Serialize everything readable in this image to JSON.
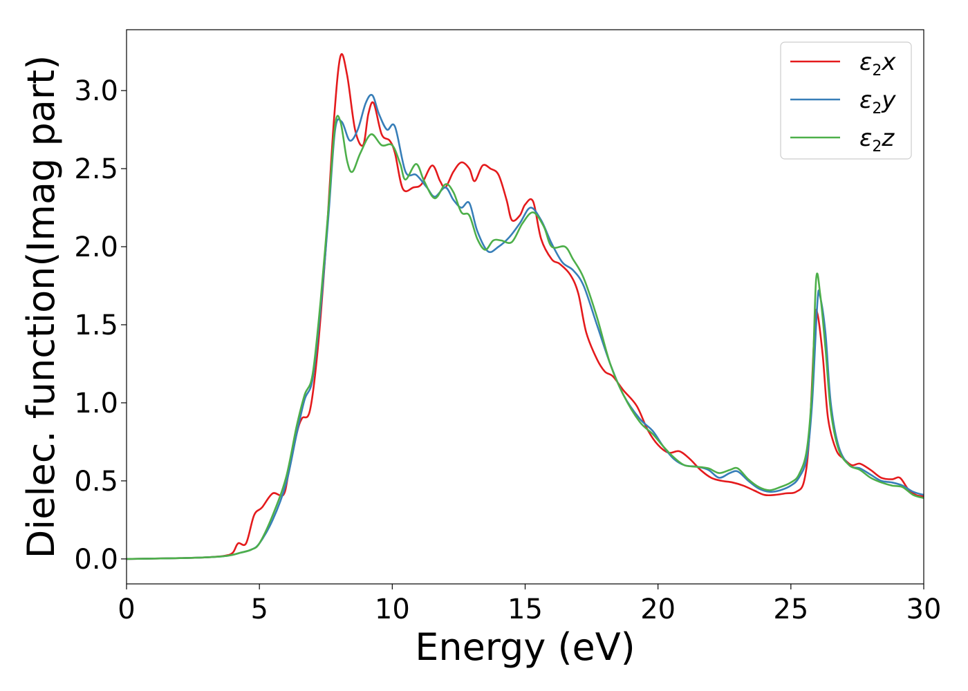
{
  "chart_data": {
    "type": "line",
    "xlabel": "Energy (eV)",
    "ylabel": "Dielec. function(Imag part)",
    "xlim": [
      0,
      30
    ],
    "ylim": [
      -0.16,
      3.39
    ],
    "xticks": [
      0,
      5,
      10,
      15,
      20,
      25,
      30
    ],
    "xtick_labels": [
      "0",
      "5",
      "10",
      "15",
      "20",
      "25",
      "30"
    ],
    "yticks": [
      0.0,
      0.5,
      1.0,
      1.5,
      2.0,
      2.5,
      3.0
    ],
    "ytick_labels": [
      "0.0",
      "0.5",
      "1.0",
      "1.5",
      "2.0",
      "2.5",
      "3.0"
    ],
    "grid": false,
    "legend_position": "top-right",
    "series": [
      {
        "name": "ε2x",
        "legend": {
          "main": "ε",
          "sub": "2",
          "tail": "x"
        },
        "color": "#e41a1c",
        "points": [
          [
            0,
            0.0
          ],
          [
            2,
            0.005
          ],
          [
            3,
            0.01
          ],
          [
            3.7,
            0.02
          ],
          [
            4.0,
            0.04
          ],
          [
            4.2,
            0.1
          ],
          [
            4.5,
            0.1
          ],
          [
            4.8,
            0.28
          ],
          [
            5.1,
            0.33
          ],
          [
            5.5,
            0.42
          ],
          [
            5.9,
            0.41
          ],
          [
            6.1,
            0.55
          ],
          [
            6.4,
            0.8
          ],
          [
            6.6,
            0.9
          ],
          [
            6.9,
            0.95
          ],
          [
            7.2,
            1.35
          ],
          [
            7.5,
            2.0
          ],
          [
            7.8,
            2.8
          ],
          [
            8.05,
            3.22
          ],
          [
            8.3,
            3.1
          ],
          [
            8.6,
            2.75
          ],
          [
            8.9,
            2.65
          ],
          [
            9.1,
            2.85
          ],
          [
            9.3,
            2.92
          ],
          [
            9.6,
            2.72
          ],
          [
            9.9,
            2.68
          ],
          [
            10.1,
            2.6
          ],
          [
            10.4,
            2.37
          ],
          [
            10.8,
            2.38
          ],
          [
            11.1,
            2.4
          ],
          [
            11.5,
            2.52
          ],
          [
            11.8,
            2.42
          ],
          [
            12.0,
            2.38
          ],
          [
            12.3,
            2.48
          ],
          [
            12.6,
            2.54
          ],
          [
            12.9,
            2.5
          ],
          [
            13.1,
            2.42
          ],
          [
            13.4,
            2.52
          ],
          [
            13.7,
            2.5
          ],
          [
            14.0,
            2.46
          ],
          [
            14.3,
            2.3
          ],
          [
            14.5,
            2.17
          ],
          [
            14.8,
            2.2
          ],
          [
            15.0,
            2.27
          ],
          [
            15.3,
            2.29
          ],
          [
            15.6,
            2.05
          ],
          [
            16.0,
            1.92
          ],
          [
            16.3,
            1.89
          ],
          [
            16.7,
            1.82
          ],
          [
            17.0,
            1.7
          ],
          [
            17.3,
            1.45
          ],
          [
            17.7,
            1.28
          ],
          [
            18.0,
            1.2
          ],
          [
            18.3,
            1.17
          ],
          [
            18.7,
            1.08
          ],
          [
            19.2,
            0.98
          ],
          [
            19.6,
            0.83
          ],
          [
            20.0,
            0.73
          ],
          [
            20.4,
            0.68
          ],
          [
            20.8,
            0.69
          ],
          [
            21.2,
            0.64
          ],
          [
            21.6,
            0.57
          ],
          [
            22.0,
            0.52
          ],
          [
            22.4,
            0.5
          ],
          [
            22.8,
            0.49
          ],
          [
            23.2,
            0.47
          ],
          [
            23.6,
            0.44
          ],
          [
            24.0,
            0.41
          ],
          [
            24.4,
            0.41
          ],
          [
            24.8,
            0.42
          ],
          [
            25.2,
            0.43
          ],
          [
            25.5,
            0.5
          ],
          [
            25.7,
            0.8
          ],
          [
            25.9,
            1.5
          ],
          [
            26.0,
            1.57
          ],
          [
            26.2,
            1.3
          ],
          [
            26.4,
            0.9
          ],
          [
            26.7,
            0.7
          ],
          [
            27.0,
            0.64
          ],
          [
            27.3,
            0.6
          ],
          [
            27.6,
            0.61
          ],
          [
            28.0,
            0.57
          ],
          [
            28.4,
            0.52
          ],
          [
            28.8,
            0.51
          ],
          [
            29.1,
            0.52
          ],
          [
            29.4,
            0.45
          ],
          [
            29.7,
            0.41
          ],
          [
            30.0,
            0.4
          ]
        ]
      },
      {
        "name": "ε2y",
        "legend": {
          "main": "ε",
          "sub": "2",
          "tail": "y"
        },
        "color": "#377eb8",
        "points": [
          [
            0,
            0.0
          ],
          [
            2,
            0.005
          ],
          [
            3,
            0.01
          ],
          [
            3.8,
            0.02
          ],
          [
            4.3,
            0.04
          ],
          [
            4.7,
            0.06
          ],
          [
            5.0,
            0.1
          ],
          [
            5.5,
            0.25
          ],
          [
            6.0,
            0.48
          ],
          [
            6.4,
            0.8
          ],
          [
            6.7,
            1.02
          ],
          [
            7.0,
            1.15
          ],
          [
            7.3,
            1.6
          ],
          [
            7.6,
            2.2
          ],
          [
            7.85,
            2.75
          ],
          [
            8.1,
            2.8
          ],
          [
            8.4,
            2.68
          ],
          [
            8.7,
            2.75
          ],
          [
            9.0,
            2.92
          ],
          [
            9.25,
            2.97
          ],
          [
            9.5,
            2.85
          ],
          [
            9.8,
            2.75
          ],
          [
            10.1,
            2.77
          ],
          [
            10.5,
            2.48
          ],
          [
            10.9,
            2.46
          ],
          [
            11.3,
            2.38
          ],
          [
            11.6,
            2.32
          ],
          [
            12.0,
            2.38
          ],
          [
            12.3,
            2.3
          ],
          [
            12.6,
            2.25
          ],
          [
            12.9,
            2.28
          ],
          [
            13.2,
            2.1
          ],
          [
            13.6,
            1.97
          ],
          [
            14.0,
            2.0
          ],
          [
            14.4,
            2.06
          ],
          [
            14.8,
            2.15
          ],
          [
            15.2,
            2.25
          ],
          [
            15.6,
            2.17
          ],
          [
            16.0,
            2.02
          ],
          [
            16.4,
            1.9
          ],
          [
            16.8,
            1.85
          ],
          [
            17.2,
            1.75
          ],
          [
            17.7,
            1.5
          ],
          [
            18.2,
            1.25
          ],
          [
            18.7,
            1.05
          ],
          [
            19.3,
            0.9
          ],
          [
            19.8,
            0.82
          ],
          [
            20.2,
            0.72
          ],
          [
            20.6,
            0.64
          ],
          [
            21.0,
            0.6
          ],
          [
            21.5,
            0.59
          ],
          [
            21.9,
            0.57
          ],
          [
            22.3,
            0.52
          ],
          [
            22.7,
            0.55
          ],
          [
            23.0,
            0.56
          ],
          [
            23.4,
            0.5
          ],
          [
            23.8,
            0.45
          ],
          [
            24.2,
            0.43
          ],
          [
            24.6,
            0.44
          ],
          [
            25.0,
            0.47
          ],
          [
            25.3,
            0.52
          ],
          [
            25.6,
            0.65
          ],
          [
            25.8,
            1.0
          ],
          [
            26.0,
            1.65
          ],
          [
            26.1,
            1.68
          ],
          [
            26.3,
            1.45
          ],
          [
            26.5,
            1.0
          ],
          [
            26.8,
            0.72
          ],
          [
            27.2,
            0.6
          ],
          [
            27.6,
            0.58
          ],
          [
            28.0,
            0.54
          ],
          [
            28.4,
            0.5
          ],
          [
            28.8,
            0.49
          ],
          [
            29.2,
            0.47
          ],
          [
            29.6,
            0.43
          ],
          [
            30.0,
            0.41
          ]
        ]
      },
      {
        "name": "ε2z",
        "legend": {
          "main": "ε",
          "sub": "2",
          "tail": "z"
        },
        "color": "#4daf4a",
        "points": [
          [
            0,
            0.0
          ],
          [
            2,
            0.005
          ],
          [
            3,
            0.01
          ],
          [
            3.8,
            0.02
          ],
          [
            4.3,
            0.04
          ],
          [
            4.7,
            0.06
          ],
          [
            5.0,
            0.1
          ],
          [
            5.5,
            0.28
          ],
          [
            6.0,
            0.52
          ],
          [
            6.4,
            0.85
          ],
          [
            6.7,
            1.05
          ],
          [
            7.0,
            1.18
          ],
          [
            7.3,
            1.65
          ],
          [
            7.6,
            2.25
          ],
          [
            7.85,
            2.78
          ],
          [
            8.05,
            2.8
          ],
          [
            8.3,
            2.55
          ],
          [
            8.5,
            2.48
          ],
          [
            8.8,
            2.6
          ],
          [
            9.2,
            2.72
          ],
          [
            9.6,
            2.65
          ],
          [
            10.0,
            2.65
          ],
          [
            10.3,
            2.53
          ],
          [
            10.5,
            2.43
          ],
          [
            10.9,
            2.53
          ],
          [
            11.2,
            2.42
          ],
          [
            11.6,
            2.31
          ],
          [
            12.0,
            2.4
          ],
          [
            12.3,
            2.35
          ],
          [
            12.6,
            2.22
          ],
          [
            12.9,
            2.2
          ],
          [
            13.2,
            2.05
          ],
          [
            13.5,
            1.98
          ],
          [
            13.8,
            2.04
          ],
          [
            14.1,
            2.04
          ],
          [
            14.5,
            2.03
          ],
          [
            14.9,
            2.15
          ],
          [
            15.3,
            2.22
          ],
          [
            15.7,
            2.13
          ],
          [
            16.0,
            2.0
          ],
          [
            16.5,
            2.0
          ],
          [
            16.8,
            1.92
          ],
          [
            17.2,
            1.8
          ],
          [
            17.7,
            1.55
          ],
          [
            18.2,
            1.25
          ],
          [
            18.7,
            1.05
          ],
          [
            19.3,
            0.88
          ],
          [
            19.8,
            0.8
          ],
          [
            20.2,
            0.72
          ],
          [
            20.6,
            0.65
          ],
          [
            21.0,
            0.6
          ],
          [
            21.5,
            0.59
          ],
          [
            21.9,
            0.58
          ],
          [
            22.3,
            0.55
          ],
          [
            22.7,
            0.57
          ],
          [
            23.0,
            0.58
          ],
          [
            23.4,
            0.51
          ],
          [
            23.8,
            0.46
          ],
          [
            24.2,
            0.44
          ],
          [
            24.6,
            0.46
          ],
          [
            25.0,
            0.49
          ],
          [
            25.3,
            0.54
          ],
          [
            25.6,
            0.7
          ],
          [
            25.8,
            1.1
          ],
          [
            25.95,
            1.79
          ],
          [
            26.1,
            1.7
          ],
          [
            26.3,
            1.35
          ],
          [
            26.5,
            0.95
          ],
          [
            26.8,
            0.7
          ],
          [
            27.2,
            0.6
          ],
          [
            27.6,
            0.57
          ],
          [
            28.0,
            0.52
          ],
          [
            28.4,
            0.49
          ],
          [
            28.8,
            0.47
          ],
          [
            29.2,
            0.46
          ],
          [
            29.6,
            0.41
          ],
          [
            30.0,
            0.39
          ]
        ]
      }
    ]
  }
}
